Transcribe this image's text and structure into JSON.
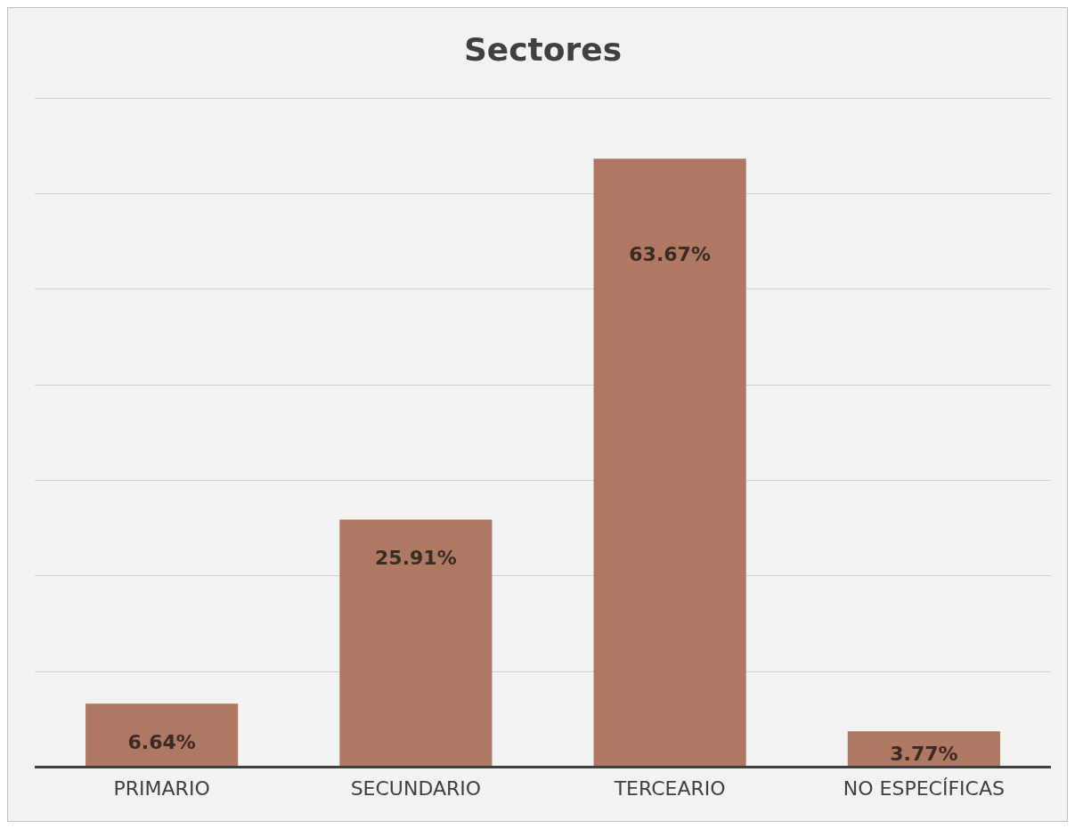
{
  "chart_data": {
    "type": "bar",
    "title": "Sectores",
    "categories": [
      "PRIMARIO",
      "SECUNDARIO",
      "TERCEARIO",
      "NO ESPECÍFICAS"
    ],
    "values": [
      6.64,
      25.91,
      63.67,
      3.77
    ],
    "value_labels": [
      "6.64%",
      "25.91%",
      "63.67%",
      "3.77%"
    ],
    "color": "#ae7863",
    "tick_labels": "x",
    "grid": "y",
    "legend": false
  }
}
